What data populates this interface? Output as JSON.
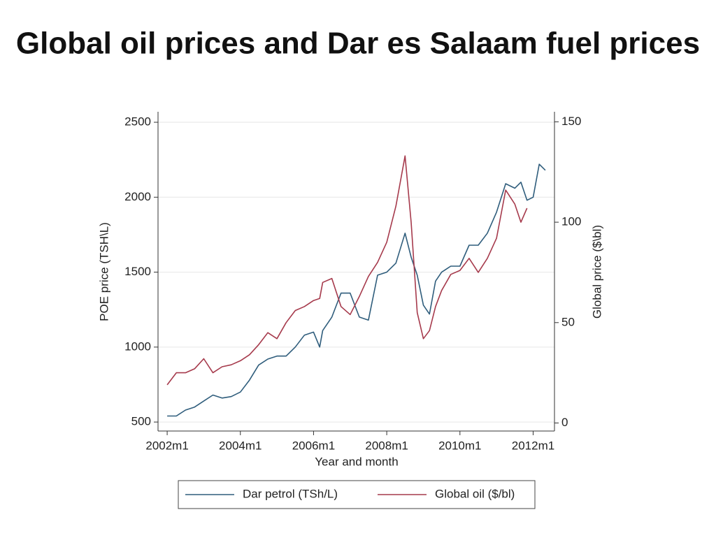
{
  "chart_data": {
    "type": "line",
    "title": "Global oil prices and Dar es Salaam fuel prices",
    "xlabel": "Year and month",
    "ylabel": "POE price (TSH\\L)",
    "y2label": "Global price ($\\bl)",
    "x": [
      "2002m1",
      "2002m4",
      "2002m7",
      "2002m10",
      "2003m1",
      "2003m4",
      "2003m7",
      "2003m10",
      "2004m1",
      "2004m4",
      "2004m7",
      "2004m10",
      "2005m1",
      "2005m4",
      "2005m7",
      "2005m10",
      "2006m1",
      "2006m3",
      "2006m4",
      "2006m7",
      "2006m10",
      "2007m1",
      "2007m4",
      "2007m7",
      "2007m10",
      "2008m1",
      "2008m4",
      "2008m7",
      "2008m9",
      "2008m11",
      "2009m1",
      "2009m3",
      "2009m5",
      "2009m7",
      "2009m10",
      "2010m1",
      "2010m4",
      "2010m7",
      "2010m10",
      "2011m1",
      "2011m4",
      "2011m7",
      "2011m9",
      "2011m11",
      "2012m1",
      "2012m3",
      "2012m5"
    ],
    "series": [
      {
        "name": "Dar petrol (TSh/L)",
        "color": "#2f5d7c",
        "values": [
          540,
          540,
          580,
          600,
          640,
          680,
          660,
          670,
          700,
          780,
          880,
          920,
          940,
          940,
          1000,
          1080,
          1100,
          1000,
          1110,
          1200,
          1360,
          1360,
          1200,
          1180,
          1480,
          1500,
          1560,
          1760,
          1600,
          1480,
          1280,
          1220,
          1440,
          1500,
          1540,
          1540,
          1680,
          1680,
          1760,
          1900,
          2090,
          2060,
          2100,
          1980,
          2000,
          2220,
          2180
        ]
      },
      {
        "name": "Global oil ($/bl)",
        "color": "#a63a4c",
        "axis": "y2",
        "values": [
          19,
          25,
          25,
          27,
          32,
          25,
          28,
          29,
          31,
          34,
          39,
          45,
          42,
          50,
          56,
          58,
          61,
          62,
          70,
          72,
          58,
          54,
          63,
          73,
          80,
          90,
          108,
          133,
          100,
          55,
          42,
          46,
          58,
          66,
          74,
          76,
          82,
          75,
          82,
          92,
          116,
          109,
          100,
          107,
          null,
          null,
          null
        ]
      }
    ],
    "xlim": [
      "2001m10",
      "2012m8"
    ],
    "xticks": [
      "2002m1",
      "2004m1",
      "2006m1",
      "2008m1",
      "2010m1",
      "2012m1"
    ],
    "ylim": [
      440,
      2570
    ],
    "yticks": [
      500,
      1000,
      1500,
      2000,
      2500
    ],
    "y2lim": [
      -4,
      155
    ],
    "y2ticks": [
      0,
      50,
      100,
      150
    ],
    "grid": true,
    "legend": "bottom"
  }
}
